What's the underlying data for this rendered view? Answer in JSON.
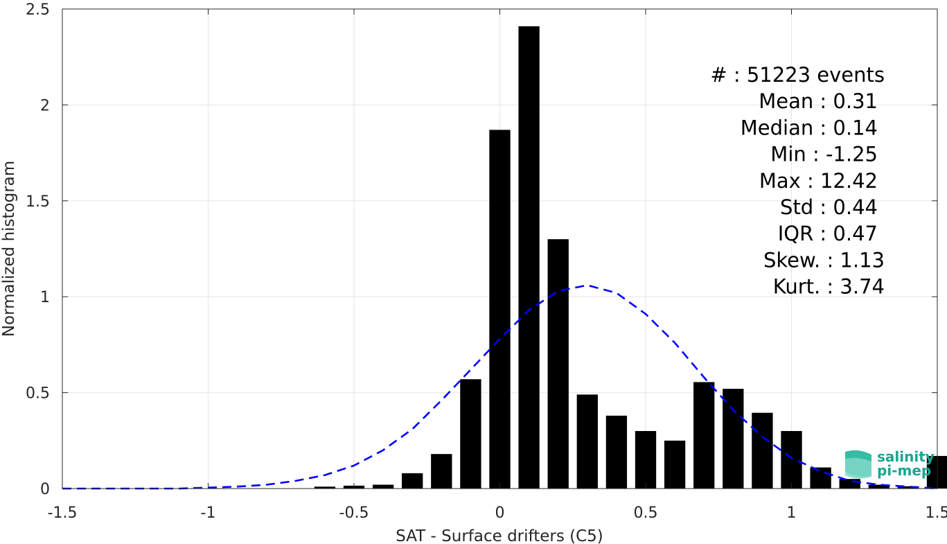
{
  "chart_data": {
    "type": "bar",
    "xlabel": "SAT - Surface drifters (C5)",
    "ylabel": "Normalized histogram",
    "xlim": [
      -1.5,
      1.5
    ],
    "ylim": [
      0,
      2.5
    ],
    "xticks": [
      "-1.5",
      "-1",
      "-0.5",
      "0",
      "0.5",
      "1",
      "1.5"
    ],
    "yticks": [
      "0",
      "0.5",
      "1",
      "1.5",
      "2",
      "2.5"
    ],
    "grid": true,
    "bar_color": "#000000",
    "fit_color": "#0000ff",
    "bins": {
      "centers": [
        -0.6,
        -0.5,
        -0.4,
        -0.3,
        -0.2,
        -0.1,
        0.0,
        0.1,
        0.2,
        0.3,
        0.4,
        0.5,
        0.6,
        0.7,
        0.8,
        0.9,
        1.0,
        1.1,
        1.2,
        1.3,
        1.4,
        1.5
      ],
      "values": [
        0.01,
        0.015,
        0.02,
        0.08,
        0.18,
        0.57,
        1.87,
        2.41,
        1.3,
        0.49,
        0.38,
        0.3,
        0.25,
        0.555,
        0.52,
        0.395,
        0.3,
        0.11,
        0.05,
        0.02,
        0.012,
        0.17
      ]
    },
    "fit": {
      "style": "dashed",
      "x": [
        -1.5,
        -1.3,
        -1.1,
        -0.9,
        -0.8,
        -0.7,
        -0.6,
        -0.5,
        -0.4,
        -0.3,
        -0.2,
        -0.1,
        0.0,
        0.1,
        0.2,
        0.3,
        0.4,
        0.5,
        0.6,
        0.7,
        0.8,
        0.9,
        1.0,
        1.1,
        1.2,
        1.3,
        1.4,
        1.5
      ],
      "y": [
        0.0,
        0.0,
        0.0,
        0.01,
        0.02,
        0.04,
        0.07,
        0.12,
        0.2,
        0.31,
        0.46,
        0.62,
        0.78,
        0.93,
        1.03,
        1.06,
        1.02,
        0.91,
        0.76,
        0.58,
        0.41,
        0.27,
        0.16,
        0.09,
        0.04,
        0.02,
        0.01,
        0.0
      ]
    },
    "stats": [
      "#  : 51223 events",
      "Mean : 0.31",
      "Median : 0.14",
      "Min : -1.25",
      "Max : 12.42",
      "Std : 0.44",
      "IQR : 0.47",
      "Skew. : 1.13",
      "Kurt. : 3.74"
    ]
  },
  "logo": {
    "line1": "salinity",
    "line2": "pi-mep",
    "color": "#1aa68f"
  }
}
